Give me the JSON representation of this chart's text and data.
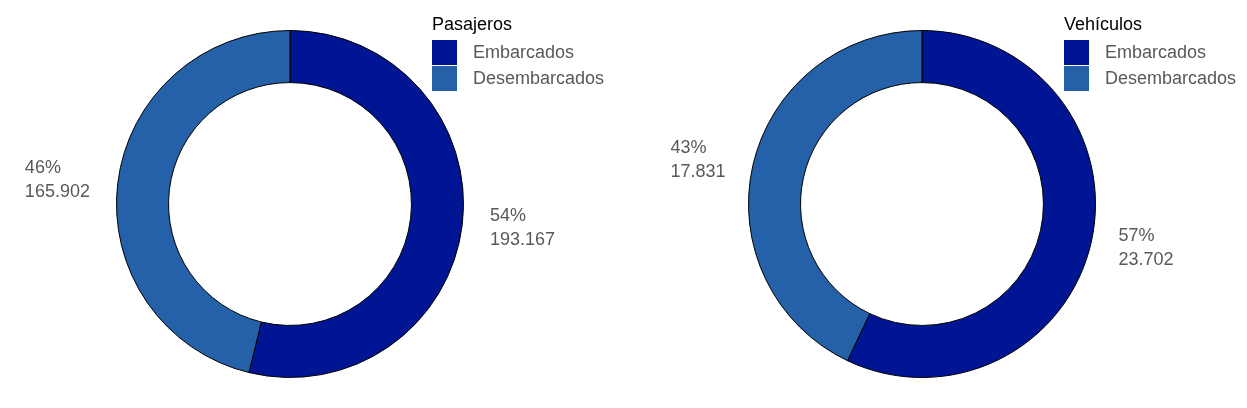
{
  "chart_data": [
    {
      "type": "donut",
      "legend_title": "Pasajeros",
      "categories": [
        "Embarcados",
        "Desembarcados"
      ],
      "values": [
        193167,
        165902
      ],
      "colors": [
        "#001594",
        "#2461a8"
      ],
      "value_labels": [
        "54%\n193.167",
        "46%\n165.902"
      ],
      "legend": "top right"
    },
    {
      "type": "donut",
      "legend_title": "Vehículos",
      "categories": [
        "Embarcados",
        "Desembarcados"
      ],
      "values": [
        23702,
        17831
      ],
      "colors": [
        "#001594",
        "#2461a8"
      ],
      "value_labels": [
        "57%\n23.702",
        "43%\n17.831"
      ],
      "legend": "top right"
    }
  ]
}
